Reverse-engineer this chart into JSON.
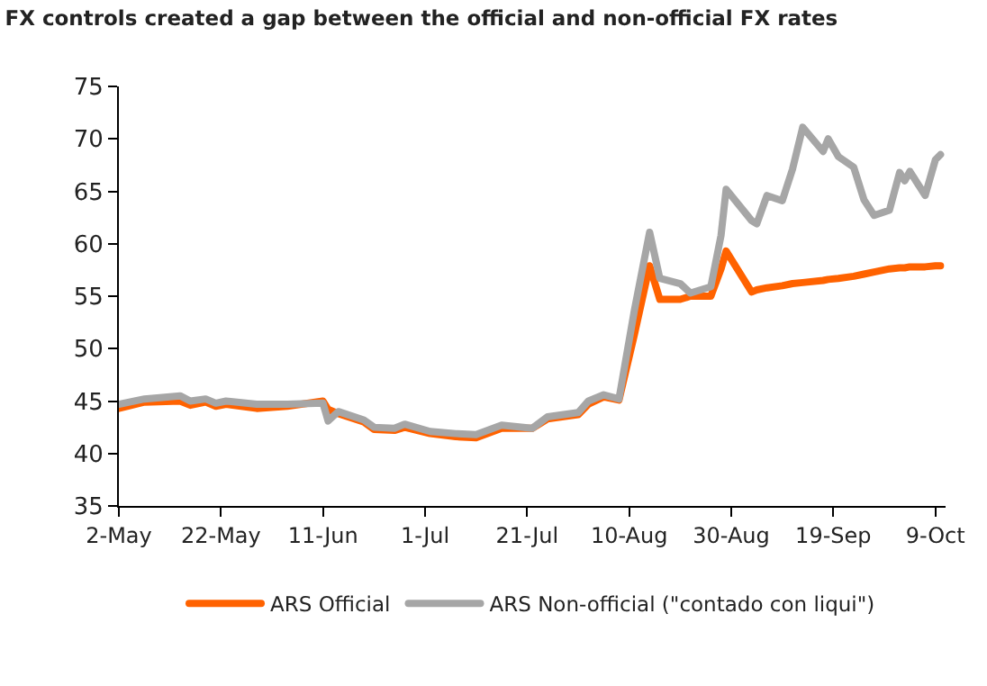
{
  "chart_data": {
    "type": "line",
    "title": "FX controls created a gap between the official and non-official FX rates",
    "x": [
      "--05-02",
      "--05-07",
      "--05-14",
      "--05-16",
      "--05-19",
      "--05-21",
      "--05-23",
      "--05-29",
      "--06-04",
      "--06-11",
      "--06-12",
      "--06-14",
      "--06-19",
      "--06-21",
      "--06-25",
      "--06-27",
      "--07-02",
      "--07-07",
      "--07-11",
      "--07-16",
      "--07-22",
      "--07-25",
      "--07-31",
      "--08-02",
      "--08-05",
      "--08-08",
      "--08-11",
      "--08-14",
      "--08-16",
      "--08-20",
      "--08-22",
      "--08-26",
      "--08-28",
      "--08-29",
      "--09-03",
      "--09-04",
      "--09-06",
      "--09-09",
      "--09-11",
      "--09-13",
      "--09-17",
      "--09-18",
      "--09-20",
      "--09-23",
      "--09-25",
      "--09-27",
      "--09-30",
      "--10-02",
      "--10-03",
      "--10-04",
      "--10-07",
      "--10-09",
      "--10-10"
    ],
    "series": [
      {
        "name": "ARS Official",
        "color": "#ff6200",
        "values": [
          44.3,
          44.9,
          45.0,
          44.6,
          44.9,
          44.5,
          44.7,
          44.3,
          44.5,
          45.0,
          44.2,
          43.8,
          43.0,
          42.3,
          42.2,
          42.5,
          41.9,
          41.6,
          41.5,
          42.4,
          42.4,
          43.3,
          43.7,
          44.7,
          45.4,
          45.1,
          51.3,
          57.9,
          54.7,
          54.7,
          55.0,
          55.0,
          57.6,
          59.3,
          55.4,
          55.6,
          55.8,
          56.0,
          56.2,
          56.3,
          56.5,
          56.6,
          56.7,
          56.9,
          57.1,
          57.3,
          57.6,
          57.7,
          57.7,
          57.8,
          57.8,
          57.9,
          57.9
        ]
      },
      {
        "name": "ARS Non-official (\"contado con liqui\")",
        "color": "#a6a6a6",
        "values": [
          44.7,
          45.2,
          45.5,
          45.0,
          45.2,
          44.8,
          45.0,
          44.7,
          44.7,
          44.8,
          43.1,
          44.0,
          43.2,
          42.5,
          42.4,
          42.8,
          42.1,
          41.9,
          41.8,
          42.7,
          42.4,
          43.5,
          43.9,
          45.0,
          45.6,
          45.2,
          53.6,
          61.1,
          56.7,
          56.2,
          55.3,
          55.9,
          60.8,
          65.2,
          62.2,
          61.9,
          64.6,
          64.1,
          67.1,
          71.1,
          68.8,
          70.0,
          68.3,
          67.3,
          64.2,
          62.7,
          63.2,
          66.8,
          66.0,
          66.9,
          64.6,
          68.0,
          68.5
        ]
      }
    ],
    "xlim": [
      "--05-02",
      "--10-11"
    ],
    "xticks": [
      {
        "value": "--05-02",
        "label": "2-May"
      },
      {
        "value": "--05-22",
        "label": "22-May"
      },
      {
        "value": "--06-11",
        "label": "11-Jun"
      },
      {
        "value": "--07-01",
        "label": "1-Jul"
      },
      {
        "value": "--07-21",
        "label": "21-Jul"
      },
      {
        "value": "--08-10",
        "label": "10-Aug"
      },
      {
        "value": "--08-30",
        "label": "30-Aug"
      },
      {
        "value": "--09-19",
        "label": "19-Sep"
      },
      {
        "value": "--10-09",
        "label": "9-Oct"
      }
    ],
    "ylim": [
      35,
      75
    ],
    "yticks": [
      35,
      40,
      45,
      50,
      55,
      60,
      65,
      70,
      75
    ],
    "legend": "bottom"
  }
}
